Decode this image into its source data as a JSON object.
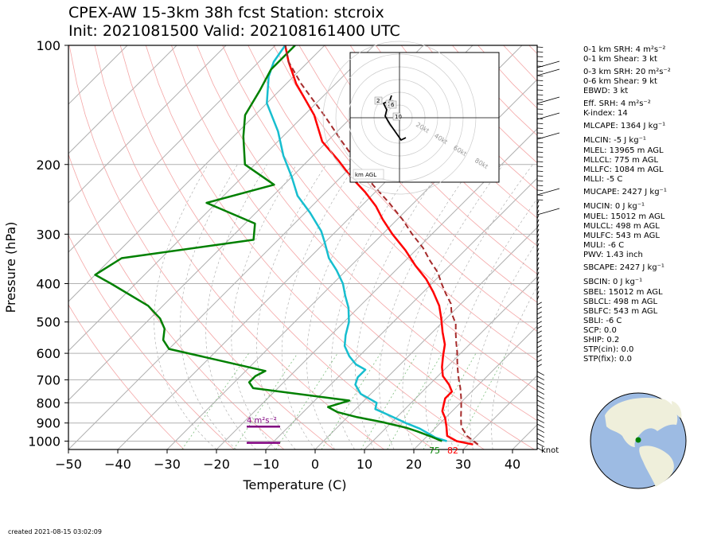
{
  "title": {
    "line1": "CPEX-AW 15-3km  38h fcst  Station: stcroix",
    "line2": "Init: 2021081500  Valid: 202108161400 UTC"
  },
  "chart_data": {
    "type": "line",
    "subtype": "skew-T log-P sounding",
    "xlabel": "Temperature (C)",
    "ylabel": "Pressure (hPa)",
    "xlim": [
      -50,
      45
    ],
    "ylim": [
      1050,
      100
    ],
    "y_scale": "log",
    "x_ticks": [
      -50,
      -40,
      -30,
      -20,
      -10,
      0,
      10,
      20,
      30,
      40
    ],
    "y_ticks": [
      100,
      200,
      300,
      400,
      500,
      600,
      700,
      800,
      900,
      1000
    ],
    "grid": true,
    "series": [
      {
        "color": "#ff0000",
        "points": [
          [
            31,
            1020
          ],
          [
            27,
            1000
          ],
          [
            24,
            970
          ],
          [
            22,
            920
          ],
          [
            20,
            875
          ],
          [
            18,
            840
          ],
          [
            17,
            810
          ],
          [
            16,
            780
          ],
          [
            16,
            750
          ],
          [
            14,
            720
          ],
          [
            11,
            685
          ],
          [
            9,
            650
          ],
          [
            7,
            610
          ],
          [
            5,
            570
          ],
          [
            2,
            530
          ],
          [
            -1,
            490
          ],
          [
            -4,
            455
          ],
          [
            -8,
            420
          ],
          [
            -12,
            390
          ],
          [
            -17,
            360
          ],
          [
            -22,
            330
          ],
          [
            -28,
            300
          ],
          [
            -33,
            275
          ],
          [
            -37,
            255
          ],
          [
            -42,
            235
          ],
          [
            -48,
            215
          ],
          [
            -54,
            195
          ],
          [
            -61,
            175
          ],
          [
            -68,
            150
          ],
          [
            -78,
            125
          ],
          [
            -84,
            110
          ],
          [
            -88,
            100
          ]
        ]
      },
      {
        "color": "#17becf",
        "points": [
          [
            25,
            1000
          ],
          [
            22,
            980
          ],
          [
            17,
            930
          ],
          [
            13,
            900
          ],
          [
            8,
            860
          ],
          [
            4,
            830
          ],
          [
            3,
            800
          ],
          [
            -2,
            760
          ],
          [
            -5,
            720
          ],
          [
            -6,
            690
          ],
          [
            -6,
            660
          ],
          [
            -9,
            640
          ],
          [
            -12,
            610
          ],
          [
            -15,
            575
          ],
          [
            -17,
            540
          ],
          [
            -19,
            500
          ],
          [
            -22,
            460
          ],
          [
            -25,
            430
          ],
          [
            -28,
            400
          ],
          [
            -32,
            370
          ],
          [
            -36,
            345
          ],
          [
            -40,
            315
          ],
          [
            -43,
            295
          ],
          [
            -49,
            265
          ],
          [
            -55,
            240
          ],
          [
            -60,
            215
          ],
          [
            -66,
            190
          ],
          [
            -72,
            165
          ],
          [
            -80,
            140
          ],
          [
            -85,
            120
          ],
          [
            -87,
            110
          ],
          [
            -88,
            100
          ]
        ]
      },
      {
        "color": "#008000",
        "points": [
          [
            24,
            1000
          ],
          [
            21,
            975
          ],
          [
            17,
            945
          ],
          [
            14,
            925
          ],
          [
            8,
            895
          ],
          [
            2,
            870
          ],
          [
            -3,
            845
          ],
          [
            -6,
            820
          ],
          [
            -3,
            790
          ],
          [
            -25,
            735
          ],
          [
            -27,
            710
          ],
          [
            -27,
            685
          ],
          [
            -26,
            665
          ],
          [
            -50,
            585
          ],
          [
            -53,
            555
          ],
          [
            -55,
            520
          ],
          [
            -58,
            490
          ],
          [
            -63,
            455
          ],
          [
            -75,
            400
          ],
          [
            -80,
            380
          ],
          [
            -78,
            345
          ],
          [
            -55,
            310
          ],
          [
            -58,
            282
          ],
          [
            -72,
            250
          ],
          [
            -62,
            225
          ],
          [
            -72,
            200
          ],
          [
            -78,
            170
          ],
          [
            -82,
            150
          ],
          [
            -84,
            130
          ],
          [
            -86,
            115
          ],
          [
            -86,
            100
          ]
        ]
      },
      {
        "color": "#a52a2a",
        "dashed": true,
        "points": [
          [
            32,
            1020
          ],
          [
            28,
            970
          ],
          [
            25,
            920
          ],
          [
            23,
            870
          ],
          [
            21,
            820
          ],
          [
            19,
            775
          ],
          [
            17,
            735
          ],
          [
            15,
            700
          ],
          [
            13,
            665
          ],
          [
            11,
            630
          ],
          [
            9,
            595
          ],
          [
            7,
            565
          ],
          [
            5,
            535
          ],
          [
            3,
            505
          ],
          [
            0,
            475
          ],
          [
            -2,
            450
          ],
          [
            -5,
            425
          ],
          [
            -8,
            400
          ],
          [
            -11,
            375
          ],
          [
            -15,
            350
          ],
          [
            -19,
            325
          ],
          [
            -24,
            300
          ],
          [
            -29,
            275
          ],
          [
            -35,
            250
          ],
          [
            -42,
            225
          ],
          [
            -49,
            200
          ],
          [
            -57,
            175
          ],
          [
            -66,
            150
          ],
          [
            -77,
            125
          ],
          [
            -84,
            110
          ],
          [
            -88,
            100
          ]
        ]
      }
    ],
    "annotations": {
      "surface_td": "75",
      "surface_t": "82",
      "srh_label": "4 m$^2$s$^{-2}$",
      "barb_unit": "knot"
    },
    "hodograph": {
      "ring_labels": [
        "20kt",
        "40kt",
        "60kt",
        "80kt"
      ],
      "height_labels": [
        "2",
        "1",
        "6",
        "10"
      ],
      "box_label": "km AGL"
    }
  },
  "indices": [
    "0-1 km SRH: 4 m$^2$s$^{-2}$",
    "0-1 km Shear: 3 kt",
    "0-3 km SRH: 20 m$^2$s$^{-2}$",
    "0-6 km Shear: 9 kt",
    "EBWD: 3 kt",
    "Eff. SRH: 4 m$^2$s$^{-2}$",
    "K-index: 14",
    "MLCAPE: 1364 J kg$^{-1}$",
    "MLCIN: -5 J kg$^{-1}$",
    "MLEL: 13965 m AGL",
    "MLLCL: 775 m AGL",
    "MLLFC: 1084 m AGL",
    "MLLI: -5 C",
    "MUCAPE: 2427 J kg$^{-1}$",
    "MUCIN: 0 J kg$^{-1}$",
    "MUEL: 15012 m AGL",
    "MULCL: 498 m AGL",
    "MULFC: 543 m AGL",
    "MULI: -6 C",
    "PWV: 1.43 inch",
    "SBCAPE: 2427 J kg$^{-1}$",
    "SBCIN: 0 J kg$^{-1}$",
    "SBEL: 15012 m AGL",
    "SBLCL: 498 m AGL",
    "SBLFC: 543 m AGL",
    "SBLI: -6 C",
    "SCP: 0.0",
    "SHIP: 0.2",
    "STP(cin): 0.0",
    "STP(fix): 0.0"
  ],
  "footer": {
    "created": "created 2021-08-15 03:02:09"
  },
  "colors": {
    "temp": "#ff0000",
    "dewpoint": "#008000",
    "wetbulb": "#17becf",
    "parcel": "#a52a2a",
    "srh": "#800080",
    "ocean": "#9dbbe3",
    "land": "#efefdb"
  },
  "map": {
    "station_marker_color": "#008000"
  }
}
